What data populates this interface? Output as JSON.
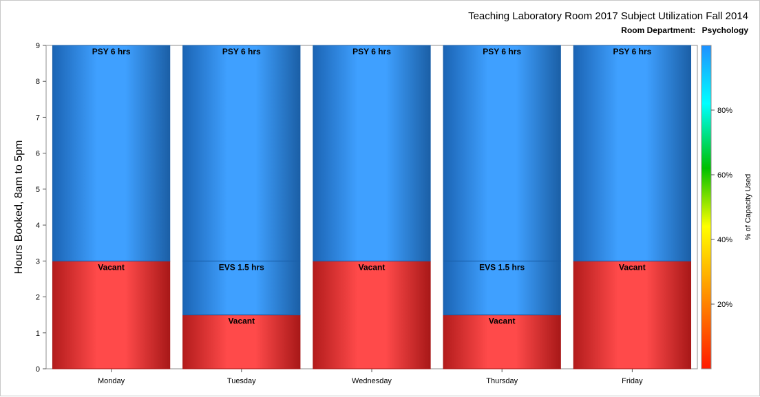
{
  "chart_data": {
    "type": "bar",
    "stacked": true,
    "title": "Teaching Laboratory Room 2017 Subject Utilization Fall 2014",
    "subtitle_label": "Room Department:",
    "subtitle_value": "Psychology",
    "xlabel": "",
    "ylabel": "Hours Booked, 8am to 5pm",
    "ylim": [
      0,
      9
    ],
    "yticks": [
      "0",
      "1",
      "2",
      "3",
      "4",
      "5",
      "6",
      "7",
      "8",
      "9"
    ],
    "categories": [
      "Monday",
      "Tuesday",
      "Wednesday",
      "Thursday",
      "Friday"
    ],
    "bars": [
      {
        "category": "Monday",
        "segments": [
          {
            "label": "Vacant",
            "value": 3,
            "kind": "vacant"
          },
          {
            "label": "PSY 6 hrs",
            "value": 6,
            "kind": "booked"
          }
        ]
      },
      {
        "category": "Tuesday",
        "segments": [
          {
            "label": "Vacant",
            "value": 1.5,
            "kind": "vacant"
          },
          {
            "label": "EVS 1.5 hrs",
            "value": 1.5,
            "kind": "booked"
          },
          {
            "label": "PSY 6 hrs",
            "value": 6,
            "kind": "booked"
          }
        ]
      },
      {
        "category": "Wednesday",
        "segments": [
          {
            "label": "Vacant",
            "value": 3,
            "kind": "vacant"
          },
          {
            "label": "PSY 6 hrs",
            "value": 6,
            "kind": "booked"
          }
        ]
      },
      {
        "category": "Thursday",
        "segments": [
          {
            "label": "Vacant",
            "value": 1.5,
            "kind": "vacant"
          },
          {
            "label": "EVS 1.5 hrs",
            "value": 1.5,
            "kind": "booked"
          },
          {
            "label": "PSY 6 hrs",
            "value": 6,
            "kind": "booked"
          }
        ]
      },
      {
        "category": "Friday",
        "segments": [
          {
            "label": "Vacant",
            "value": 3,
            "kind": "vacant"
          },
          {
            "label": "PSY 6 hrs",
            "value": 6,
            "kind": "booked"
          }
        ]
      }
    ],
    "colors": {
      "booked": "#3fa0ff",
      "booked_edge": "#1a5fa8",
      "vacant": "#ff4a4a",
      "vacant_edge": "#a81818"
    },
    "colorbar": {
      "label": "% of Capacity Used",
      "range": [
        0,
        100
      ],
      "ticks": [
        {
          "value": 20,
          "label": "20%"
        },
        {
          "value": 40,
          "label": "40%"
        },
        {
          "value": 60,
          "label": "60%"
        },
        {
          "value": 80,
          "label": "80%"
        }
      ],
      "stops": [
        "#ff1a00",
        "#ff8c00",
        "#ffff00",
        "#00c000",
        "#00ffff",
        "#1e90ff"
      ]
    },
    "grid": false
  }
}
